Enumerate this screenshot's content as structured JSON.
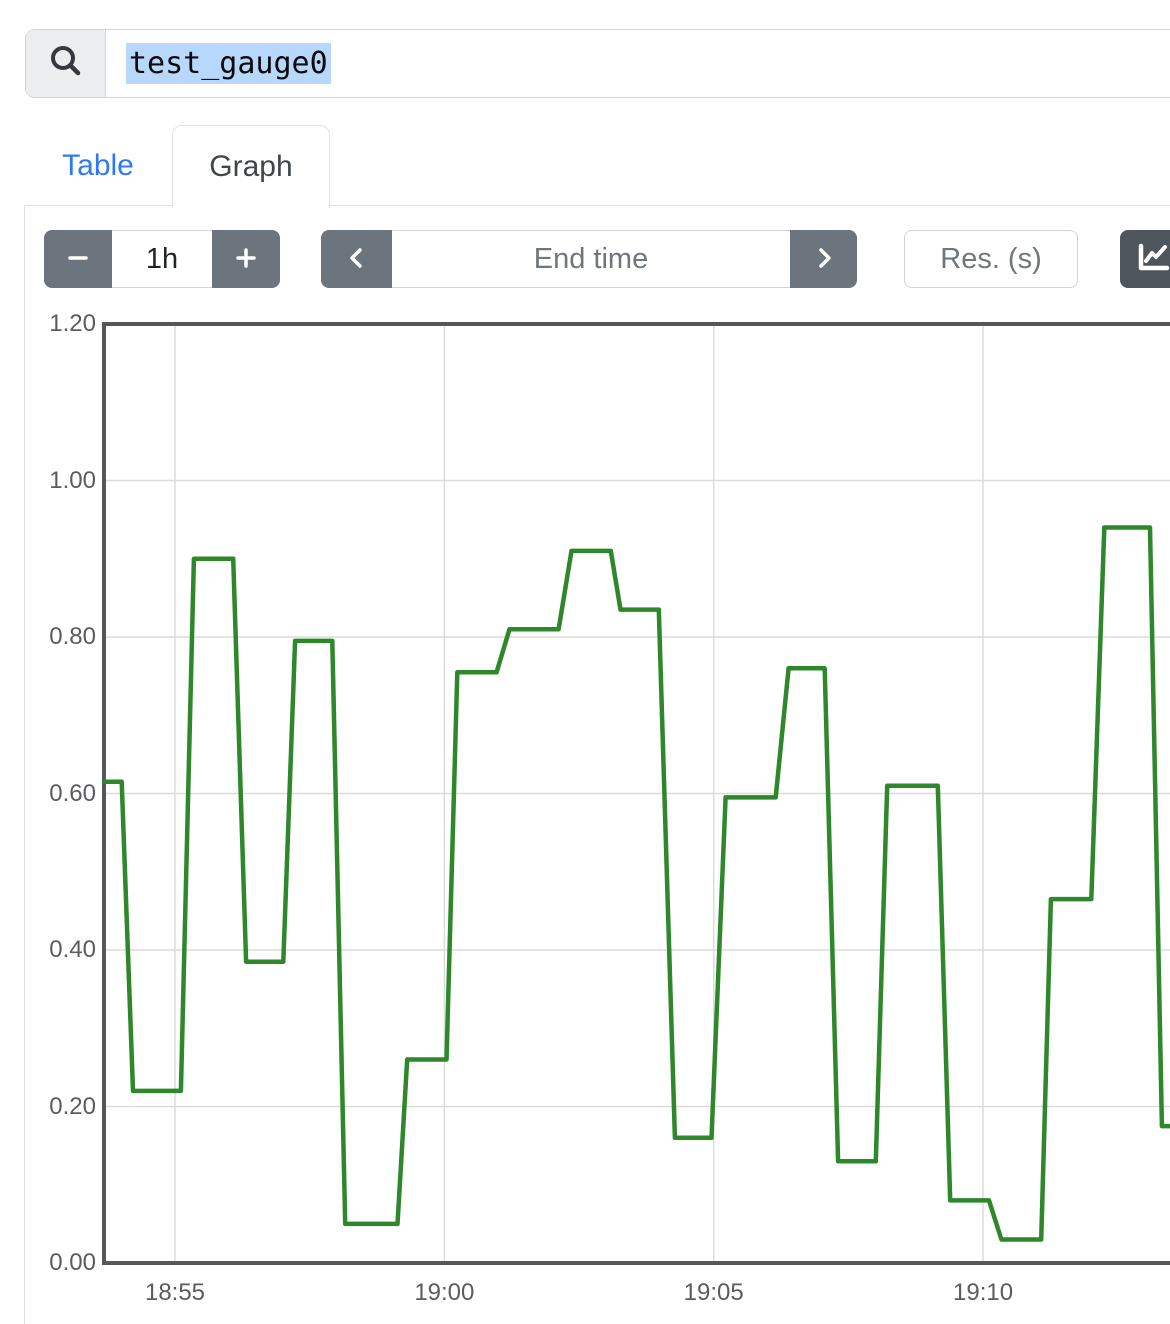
{
  "search": {
    "value": "test_gauge0"
  },
  "tabs": {
    "table": "Table",
    "graph": "Graph"
  },
  "toolbar": {
    "range_value": "1h",
    "end_time_placeholder": "End time",
    "resolution_placeholder": "Res. (s)"
  },
  "colors": {
    "accent_link": "#2e79f3",
    "button_secondary": "#6c757d",
    "button_dark": "#4f555c",
    "selection_highlight": "#b7d7fb",
    "series_green": "#2f872b",
    "axis_border": "#55575a",
    "grid": "#dcdcdc"
  },
  "icons": {
    "search": "magnifier",
    "decrease": "minus",
    "increase": "plus",
    "back": "chevron-left",
    "forward": "chevron-right",
    "graph_mode": "chart-line"
  },
  "chart_data": {
    "type": "line",
    "title": "",
    "xlabel": "",
    "ylabel": "",
    "legend": "none",
    "grid": true,
    "series_color": "#2f872b",
    "ylim": [
      0,
      1.2
    ],
    "x_range_minutes_rel_1855": [
      -1.32,
      18.47
    ],
    "x_ticks": [
      {
        "label": "18:55",
        "t": 0
      },
      {
        "label": "19:00",
        "t": 5
      },
      {
        "label": "19:05",
        "t": 10
      },
      {
        "label": "19:10",
        "t": 15
      }
    ],
    "y_ticks": [
      {
        "label": "0.00",
        "v": 0
      },
      {
        "label": "0.20",
        "v": 0.2
      },
      {
        "label": "0.40",
        "v": 0.4
      },
      {
        "label": "0.60",
        "v": 0.6
      },
      {
        "label": "0.80",
        "v": 0.8
      },
      {
        "label": "1.00",
        "v": 1
      },
      {
        "label": "1.20",
        "v": 1.2
      }
    ],
    "points": [
      [
        -1.32,
        0.615
      ],
      [
        -0.99,
        0.615
      ],
      [
        -0.78,
        0.22
      ],
      [
        0.11,
        0.22
      ],
      [
        0.35,
        0.9
      ],
      [
        1.08,
        0.9
      ],
      [
        1.32,
        0.385
      ],
      [
        2.01,
        0.385
      ],
      [
        2.23,
        0.795
      ],
      [
        2.92,
        0.795
      ],
      [
        3.16,
        0.05
      ],
      [
        4.13,
        0.05
      ],
      [
        4.31,
        0.26
      ],
      [
        5.04,
        0.26
      ],
      [
        5.24,
        0.755
      ],
      [
        5.97,
        0.755
      ],
      [
        6.21,
        0.81
      ],
      [
        7.12,
        0.81
      ],
      [
        7.36,
        0.91
      ],
      [
        8.09,
        0.91
      ],
      [
        8.27,
        0.835
      ],
      [
        8.98,
        0.835
      ],
      [
        9.28,
        0.16
      ],
      [
        9.96,
        0.16
      ],
      [
        10.22,
        0.595
      ],
      [
        11.15,
        0.595
      ],
      [
        11.39,
        0.76
      ],
      [
        12.06,
        0.76
      ],
      [
        12.31,
        0.13
      ],
      [
        13.01,
        0.13
      ],
      [
        13.22,
        0.61
      ],
      [
        14.16,
        0.61
      ],
      [
        14.39,
        0.08
      ],
      [
        15.11,
        0.08
      ],
      [
        15.34,
        0.03
      ],
      [
        16.08,
        0.03
      ],
      [
        16.26,
        0.465
      ],
      [
        17.01,
        0.465
      ],
      [
        17.25,
        0.94
      ],
      [
        18.1,
        0.94
      ],
      [
        18.32,
        0.175
      ],
      [
        18.47,
        0.175
      ]
    ]
  }
}
